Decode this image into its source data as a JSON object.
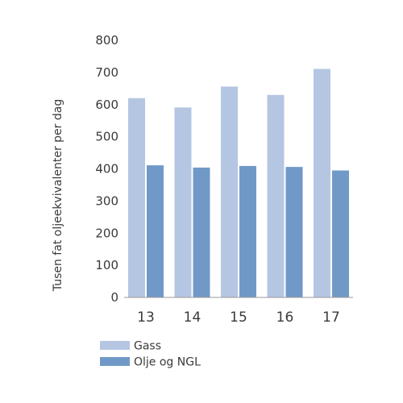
{
  "chart_data": {
    "type": "bar",
    "title": "",
    "xlabel": "",
    "ylabel": "Tusen fat oljeekvivalenter per dag",
    "categories": [
      "13",
      "14",
      "15",
      "16",
      "17"
    ],
    "yticks": [
      "0",
      "100",
      "200",
      "300",
      "400",
      "500",
      "600",
      "700",
      "800"
    ],
    "ylim": [
      0,
      800
    ],
    "grid": false,
    "legend_position": "bottom-left",
    "series": [
      {
        "name": "Gass",
        "color": "#b5c6e3",
        "values": [
          620,
          591,
          656,
          630,
          711
        ]
      },
      {
        "name": "Olje og NGL",
        "color": "#7199c7",
        "values": [
          411,
          404,
          409,
          406,
          395
        ]
      }
    ]
  }
}
